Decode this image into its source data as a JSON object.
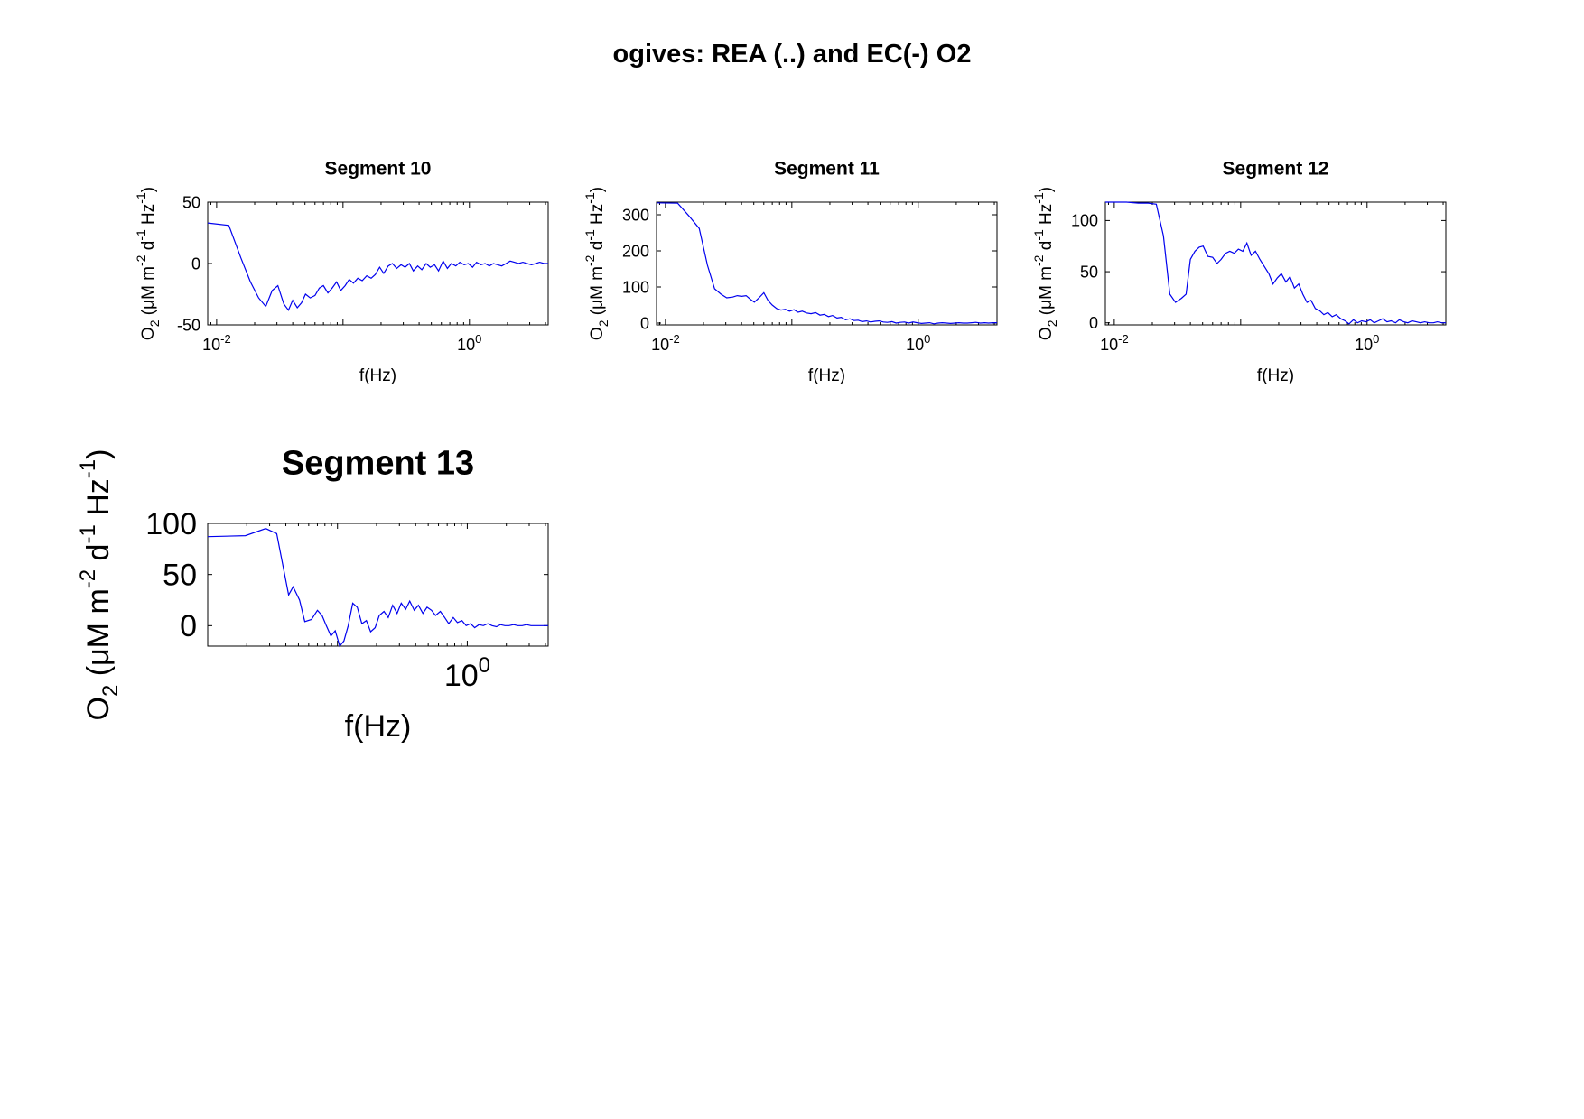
{
  "figure": {
    "title": "ogives: REA (..) and EC(-) O2"
  },
  "style": {
    "line_color": "#0000ee",
    "axis_color": "#000000",
    "background": "#ffffff"
  },
  "chart_data": [
    {
      "type": "line",
      "title": "Segment 10",
      "xlabel": "f(Hz)",
      "ylabel_base": "O",
      "ylabel_sub": "2",
      "ylabel_rest": "(μM m",
      "ylabel_e1": "-2",
      "ylabel_mid1": "d",
      "ylabel_e2": "-1",
      "ylabel_mid2": "Hz",
      "ylabel_e3": "-1",
      "ylabel_close": ")",
      "xscale": "log",
      "xlim": [
        0.0085,
        4.2
      ],
      "ylim": [
        -50,
        50
      ],
      "yticks": [
        -50,
        0,
        50
      ],
      "xticks": [
        {
          "base": "10",
          "exp": "-2",
          "value": 0.01
        },
        {
          "base": "10",
          "exp": "0",
          "value": 1
        }
      ],
      "grid": false,
      "series": [
        {
          "x": [
            0.0085,
            0.0125,
            0.0155,
            0.0185,
            0.0215,
            0.0245,
            0.0275,
            0.0305,
            0.034,
            0.037,
            0.04,
            0.0435,
            0.047,
            0.0505,
            0.055,
            0.06,
            0.065,
            0.07,
            0.076,
            0.082,
            0.089,
            0.096,
            0.104,
            0.112,
            0.121,
            0.131,
            0.142,
            0.154,
            0.167,
            0.18,
            0.195,
            0.21,
            0.228,
            0.246,
            0.266,
            0.288,
            0.31,
            0.335,
            0.36,
            0.39,
            0.42,
            0.455,
            0.49,
            0.53,
            0.57,
            0.62,
            0.67,
            0.72,
            0.78,
            0.84,
            0.91,
            0.98,
            1.06,
            1.14,
            1.23,
            1.33,
            1.44,
            1.55,
            1.68,
            1.8,
            1.95,
            2.1,
            2.27,
            2.45,
            2.65,
            2.86,
            3.1,
            3.35,
            3.6,
            3.9,
            4.2
          ],
          "y": [
            33,
            31,
            5,
            -15,
            -28,
            -35,
            -22,
            -18,
            -33,
            -38,
            -30,
            -36,
            -32,
            -25,
            -28,
            -26,
            -20,
            -18,
            -24,
            -20,
            -15,
            -22,
            -18,
            -13,
            -16,
            -12,
            -14,
            -10,
            -12,
            -9,
            -3,
            -8,
            -2,
            0,
            -4,
            -1,
            -3,
            0,
            -6,
            -2,
            -5,
            0,
            -3,
            -1,
            -6,
            2,
            -4,
            0,
            -2,
            1,
            -1,
            0,
            -3,
            1,
            -1,
            0,
            -2,
            0,
            -1,
            -2,
            0,
            2,
            1,
            0,
            1,
            0,
            -1,
            0,
            1,
            0,
            0
          ]
        }
      ]
    },
    {
      "type": "line",
      "title": "Segment 11",
      "xlabel": "f(Hz)",
      "ylabel_base": "O",
      "ylabel_sub": "2",
      "ylabel_rest": "(μM m",
      "ylabel_e1": "-2",
      "ylabel_mid1": "d",
      "ylabel_e2": "-1",
      "ylabel_mid2": "Hz",
      "ylabel_e3": "-1",
      "ylabel_close": ")",
      "xscale": "log",
      "xlim": [
        0.0085,
        4.2
      ],
      "ylim": [
        -5,
        335
      ],
      "yticks": [
        0,
        100,
        200,
        300
      ],
      "xticks": [
        {
          "base": "10",
          "exp": "-2",
          "value": 0.01
        },
        {
          "base": "10",
          "exp": "0",
          "value": 1
        }
      ],
      "grid": false,
      "series": [
        {
          "x": [
            0.0085,
            0.0125,
            0.0155,
            0.0185,
            0.0215,
            0.0245,
            0.0275,
            0.0305,
            0.034,
            0.037,
            0.04,
            0.0435,
            0.047,
            0.0505,
            0.055,
            0.06,
            0.065,
            0.07,
            0.076,
            0.082,
            0.089,
            0.096,
            0.104,
            0.112,
            0.121,
            0.131,
            0.142,
            0.154,
            0.167,
            0.18,
            0.195,
            0.21,
            0.228,
            0.246,
            0.266,
            0.288,
            0.31,
            0.335,
            0.36,
            0.39,
            0.42,
            0.455,
            0.49,
            0.53,
            0.57,
            0.62,
            0.67,
            0.72,
            0.78,
            0.84,
            0.91,
            0.98,
            1.06,
            1.14,
            1.23,
            1.33,
            1.44,
            1.55,
            1.68,
            1.8,
            1.95,
            2.1,
            2.27,
            2.45,
            2.65,
            2.86,
            3.1,
            3.35,
            3.6,
            3.9,
            4.2
          ],
          "y": [
            333,
            332,
            295,
            262,
            160,
            95,
            80,
            70,
            72,
            76,
            74,
            76,
            66,
            58,
            70,
            84,
            62,
            50,
            40,
            36,
            38,
            33,
            37,
            30,
            33,
            28,
            26,
            29,
            22,
            24,
            18,
            21,
            14,
            16,
            9,
            12,
            7,
            8,
            4,
            6,
            3,
            5,
            6,
            3,
            2,
            4,
            0,
            2,
            3,
            0,
            3,
            1,
            -1,
            0,
            1,
            -2,
            0,
            1,
            0,
            -1,
            0,
            1,
            0,
            0,
            1,
            2,
            0,
            1,
            0,
            1,
            1
          ]
        }
      ]
    },
    {
      "type": "line",
      "title": "Segment 12",
      "xlabel": "f(Hz)",
      "ylabel_base": "O",
      "ylabel_sub": "2",
      "ylabel_rest": "(μM m",
      "ylabel_e1": "-2",
      "ylabel_mid1": "d",
      "ylabel_e2": "-1",
      "ylabel_mid2": "Hz",
      "ylabel_e3": "-1",
      "ylabel_close": ")",
      "xscale": "log",
      "xlim": [
        0.0085,
        4.2
      ],
      "ylim": [
        -2,
        118
      ],
      "yticks": [
        0,
        50,
        100
      ],
      "xticks": [
        {
          "base": "10",
          "exp": "-2",
          "value": 0.01
        },
        {
          "base": "10",
          "exp": "0",
          "value": 1
        }
      ],
      "grid": false,
      "series": [
        {
          "x": [
            0.0085,
            0.0125,
            0.0155,
            0.0185,
            0.0215,
            0.0245,
            0.0275,
            0.0305,
            0.034,
            0.037,
            0.04,
            0.0435,
            0.047,
            0.0505,
            0.055,
            0.06,
            0.065,
            0.07,
            0.076,
            0.082,
            0.089,
            0.096,
            0.104,
            0.112,
            0.121,
            0.131,
            0.142,
            0.154,
            0.167,
            0.18,
            0.195,
            0.21,
            0.228,
            0.246,
            0.266,
            0.288,
            0.31,
            0.335,
            0.36,
            0.39,
            0.42,
            0.455,
            0.49,
            0.53,
            0.57,
            0.62,
            0.67,
            0.72,
            0.78,
            0.84,
            0.91,
            0.98,
            1.06,
            1.14,
            1.23,
            1.33,
            1.44,
            1.55,
            1.68,
            1.8,
            1.95,
            2.1,
            2.27,
            2.45,
            2.65,
            2.86,
            3.1,
            3.35,
            3.6,
            3.9,
            4.2
          ],
          "y": [
            118,
            118,
            117,
            117,
            116,
            85,
            28,
            20,
            24,
            28,
            62,
            70,
            74,
            75,
            65,
            64,
            58,
            62,
            68,
            70,
            68,
            72,
            70,
            78,
            66,
            70,
            62,
            55,
            48,
            38,
            44,
            48,
            40,
            45,
            34,
            38,
            28,
            20,
            22,
            14,
            12,
            8,
            10,
            6,
            8,
            4,
            2,
            -1,
            3,
            0,
            2,
            1,
            3,
            0,
            2,
            4,
            1,
            2,
            0,
            3,
            1,
            0,
            2,
            1,
            0,
            1,
            0,
            0,
            1,
            0,
            0
          ]
        }
      ]
    },
    {
      "type": "line",
      "title": "Segment 13",
      "xlabel": "f(Hz)",
      "ylabel_base": "O",
      "ylabel_sub": "2",
      "ylabel_rest": "(μM m",
      "ylabel_e1": "-2",
      "ylabel_mid1": "d",
      "ylabel_e2": "-1",
      "ylabel_mid2": "Hz",
      "ylabel_e3": "-1",
      "ylabel_close": ")",
      "xscale": "log",
      "xlim": [
        0.01,
        4.2
      ],
      "ylim": [
        -20,
        100
      ],
      "yticks": [
        0,
        50,
        100
      ],
      "xticks": [
        {
          "base": "10",
          "exp": "0",
          "value": 1
        }
      ],
      "grid": false,
      "series": [
        {
          "x": [
            0.01,
            0.0195,
            0.028,
            0.034,
            0.042,
            0.0455,
            0.051,
            0.056,
            0.063,
            0.07,
            0.076,
            0.082,
            0.089,
            0.096,
            0.104,
            0.112,
            0.121,
            0.131,
            0.142,
            0.154,
            0.167,
            0.18,
            0.195,
            0.21,
            0.228,
            0.246,
            0.266,
            0.288,
            0.31,
            0.335,
            0.36,
            0.39,
            0.42,
            0.455,
            0.49,
            0.53,
            0.57,
            0.62,
            0.67,
            0.72,
            0.78,
            0.84,
            0.91,
            0.98,
            1.06,
            1.14,
            1.23,
            1.33,
            1.44,
            1.55,
            1.68,
            1.8,
            1.95,
            2.1,
            2.27,
            2.45,
            2.65,
            2.86,
            3.1,
            3.35,
            3.6,
            3.9,
            4.2
          ],
          "y": [
            87,
            88,
            95,
            90,
            30,
            38,
            25,
            4,
            6,
            15,
            10,
            0,
            -10,
            -5,
            -20,
            -15,
            0,
            22,
            18,
            2,
            5,
            -6,
            -2,
            10,
            14,
            8,
            20,
            12,
            22,
            16,
            24,
            15,
            20,
            12,
            18,
            15,
            10,
            14,
            8,
            2,
            8,
            3,
            5,
            0,
            2,
            -2,
            1,
            0,
            2,
            0,
            -1,
            1,
            0,
            0,
            1,
            0,
            0,
            1,
            0,
            0,
            0,
            0,
            0
          ]
        }
      ]
    }
  ]
}
